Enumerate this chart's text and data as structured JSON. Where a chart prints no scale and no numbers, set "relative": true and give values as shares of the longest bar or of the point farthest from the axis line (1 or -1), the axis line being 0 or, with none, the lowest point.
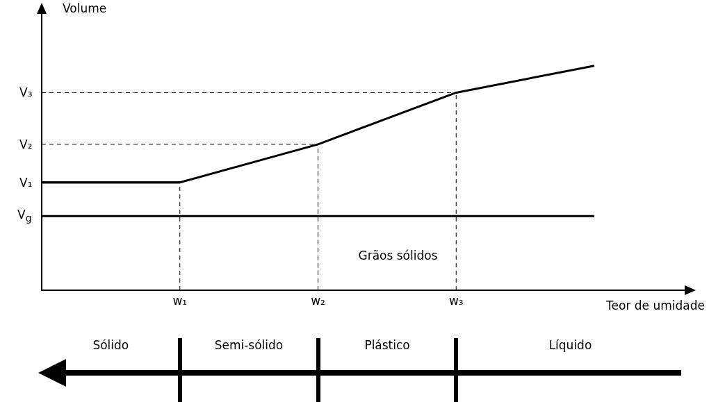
{
  "chart_data": {
    "type": "line",
    "relative": true,
    "marker": "none",
    "grid": false,
    "ylabel": "Volume",
    "xlabel": "Teor de umidade",
    "categories": [
      null,
      "w₁",
      "w₂",
      "w₃",
      null
    ],
    "series": [
      {
        "color": "#000000",
        "values": [
          0.48,
          0.48,
          0.65,
          0.88,
          1
        ]
      }
    ],
    "ref_lines": [
      {
        "axis": "y",
        "value": 0.88,
        "label": "V₃",
        "line_style": "dashed"
      },
      {
        "axis": "y",
        "value": 0.65,
        "label": "V₂",
        "line_style": "dashed"
      },
      {
        "axis": "y",
        "value": 0.48,
        "label": "V₁",
        "line_style": "solid"
      },
      {
        "axis": "y",
        "value": 0.33,
        "label": "V$_{g}$",
        "line_style": "solid",
        "color": "#000000"
      },
      {
        "axis": "x",
        "value": "w₁",
        "line_style": "dashed"
      },
      {
        "axis": "x",
        "value": "w₂",
        "line_style": "dashed"
      },
      {
        "axis": "x",
        "value": "w₃",
        "line_style": "dashed"
      }
    ],
    "annotations": [
      "Grãos sólidos",
      "Sólido",
      "Semi-sólido",
      "Plástico",
      "Líquido"
    ]
  }
}
